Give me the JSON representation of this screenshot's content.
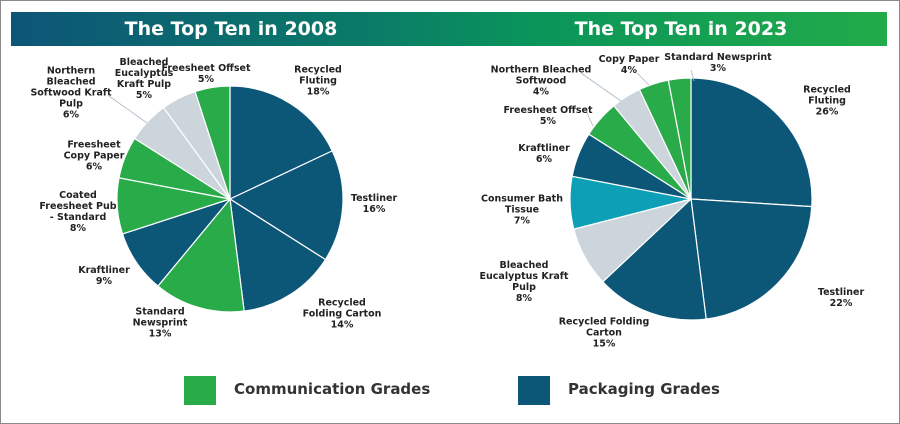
{
  "chart_data": [
    {
      "type": "pie",
      "title": "The Top Ten in 2008",
      "start": "top",
      "direction": "clockwise",
      "slices": [
        {
          "label": "Recycled Fluting",
          "value": 18,
          "group": "Packaging Grades",
          "text": "18%"
        },
        {
          "label": "Testliner",
          "value": 16,
          "group": "Packaging Grades",
          "text": "16%"
        },
        {
          "label": "Recycled Folding Carton",
          "value": 14,
          "group": "Packaging Grades",
          "text": "14%"
        },
        {
          "label": "Standard Newsprint",
          "value": 13,
          "group": "Communication Grades",
          "text": "13%"
        },
        {
          "label": "Kraftliner",
          "value": 9,
          "group": "Packaging Grades",
          "text": "9%"
        },
        {
          "label": "Coated Freesheet Pub - Standard",
          "value": 8,
          "group": "Communication Grades",
          "text": "8%"
        },
        {
          "label": "Freesheet Copy Paper",
          "value": 6,
          "group": "Communication Grades",
          "text": "6%"
        },
        {
          "label": "Northern Bleached Softwood Kraft Pulp",
          "value": 6,
          "group": "Pulp",
          "text": "6%"
        },
        {
          "label": "Bleached Eucalyptus Kraft Pulp",
          "value": 5,
          "group": "Pulp",
          "text": "5%"
        },
        {
          "label": "Freesheet Offset",
          "value": 5,
          "group": "Communication Grades",
          "text": "5%"
        }
      ]
    },
    {
      "type": "pie",
      "title": "The Top Ten in 2023",
      "start": "top",
      "direction": "clockwise",
      "slices": [
        {
          "label": "Recycled Fluting",
          "value": 26,
          "group": "Packaging Grades",
          "text": "26%"
        },
        {
          "label": "Testliner",
          "value": 22,
          "group": "Packaging Grades",
          "text": "22%"
        },
        {
          "label": "Recycled Folding Carton",
          "value": 15,
          "group": "Packaging Grades",
          "text": "15%"
        },
        {
          "label": "Bleached Eucalyptus Kraft Pulp",
          "value": 8,
          "group": "Pulp",
          "text": "8%"
        },
        {
          "label": "Consumer Bath Tissue",
          "value": 7,
          "group": "Tissue",
          "text": "7%"
        },
        {
          "label": "Kraftliner",
          "value": 6,
          "group": "Packaging Grades",
          "text": "6%"
        },
        {
          "label": "Freesheet Offset",
          "value": 5,
          "group": "Communication Grades",
          "text": "5%"
        },
        {
          "label": "Northern Bleached Softwood",
          "value": 4,
          "group": "Pulp",
          "text": "4%"
        },
        {
          "label": "Copy Paper",
          "value": 4,
          "group": "Communication Grades",
          "text": "4%"
        },
        {
          "label": "Standard Newsprint",
          "value": 3,
          "group": "Communication Grades",
          "text": "3%"
        }
      ]
    }
  ],
  "colors": {
    "Packaging Grades": "#0c5677",
    "Communication Grades": "#2aab4a",
    "Pulp": "#cdd5dc",
    "Tissue": "#0c9fb5"
  },
  "legend": [
    {
      "label": "Communication Grades",
      "color": "#2aab4a"
    },
    {
      "label": "Packaging Grades",
      "color": "#0c5677"
    }
  ],
  "labels2008": [
    "Recycled\nFluting\n18%",
    "Testliner\n16%",
    "Recycled\nFolding Carton\n14%",
    "Standard\nNewsprint\n13%",
    "Kraftliner\n9%",
    "Coated\nFreesheet Pub\n- Standard\n8%",
    "Freesheet\nCopy Paper\n6%",
    "Northern\nBleached\nSoftwood Kraft\nPulp\n6%",
    "Bleached\nEucalyptus\nKraft Pulp\n5%",
    "Freesheet Offset\n5%"
  ],
  "labels2023": [
    "Recycled Fluting\n26%",
    "Testliner\n22%",
    "Recycled Folding\nCarton\n15%",
    "Bleached\nEucalyptus Kraft\nPulp\n8%",
    "Consumer Bath\nTissue\n7%",
    "Kraftliner\n6%",
    "Freesheet Offset\n5%",
    "Northern Bleached\nSoftwood\n4%",
    "Copy Paper\n4%",
    "Standard Newsprint\n3%"
  ]
}
